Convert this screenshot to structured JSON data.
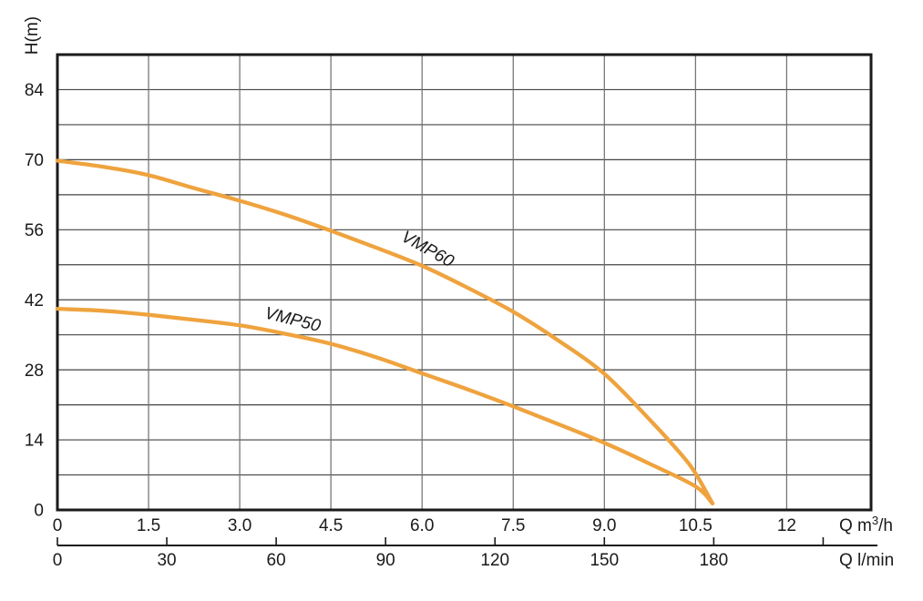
{
  "chart_data": {
    "type": "line",
    "title": "",
    "ylabel": "H(m)",
    "grid": true,
    "legend": "none",
    "y_axis": {
      "range": [
        0,
        91
      ],
      "grid_step": 7,
      "tick_values": [
        0,
        14,
        28,
        42,
        56,
        70,
        84
      ],
      "tick_labels": [
        "0",
        "14",
        "28",
        "42",
        "56",
        "70",
        "84"
      ]
    },
    "x_axis_primary": {
      "unit_display": "Q m³/h",
      "unit_parts": {
        "prefix": "Q m",
        "sup": "3",
        "suffix": "/h"
      },
      "range": [
        0,
        13.4
      ],
      "grid_step": 1.5,
      "tick_values": [
        0,
        1.5,
        3.0,
        4.5,
        6.0,
        7.5,
        9.0,
        10.5,
        12
      ],
      "tick_labels": [
        "0",
        "1.5",
        "3.0",
        "4.5",
        "6.0",
        "7.5",
        "9.0",
        "10.5",
        "12"
      ]
    },
    "x_axis_secondary": {
      "unit_display": "Q l/min",
      "conversion_m3h_per_lmin": 0.06,
      "tick_values": [
        0,
        30,
        60,
        90,
        120,
        150,
        180,
        210
      ],
      "tick_labels": [
        "0",
        "30",
        "60",
        "90",
        "120",
        "150",
        "180",
        ""
      ]
    },
    "series": [
      {
        "name": "VMP60",
        "color": "#EFA33E",
        "label": {
          "text": "VMP60",
          "q": 6.05,
          "h": 51.2,
          "rotation": 29
        },
        "points": [
          [
            0,
            69.8
          ],
          [
            0.75,
            68.6
          ],
          [
            1.5,
            66.9
          ],
          [
            2.25,
            64.3
          ],
          [
            3.0,
            61.8
          ],
          [
            3.75,
            59.0
          ],
          [
            4.5,
            55.8
          ],
          [
            5.25,
            52.4
          ],
          [
            6.0,
            48.8
          ],
          [
            6.75,
            44.4
          ],
          [
            7.5,
            39.6
          ],
          [
            8.25,
            33.8
          ],
          [
            9.0,
            27.2
          ],
          [
            9.75,
            18.0
          ],
          [
            10.25,
            11.3
          ],
          [
            10.5,
            7.3
          ],
          [
            10.78,
            1.3
          ]
        ]
      },
      {
        "name": "VMP50",
        "color": "#EFA33E",
        "label": {
          "text": "VMP50",
          "q": 3.85,
          "h": 37.0,
          "rotation": 14
        },
        "points": [
          [
            0,
            40.2
          ],
          [
            0.75,
            39.8
          ],
          [
            1.5,
            39.0
          ],
          [
            2.25,
            38.0
          ],
          [
            3.0,
            36.9
          ],
          [
            3.75,
            35.2
          ],
          [
            4.5,
            33.2
          ],
          [
            5.25,
            30.5
          ],
          [
            6.0,
            27.3
          ],
          [
            6.75,
            24.1
          ],
          [
            7.5,
            20.7
          ],
          [
            8.25,
            17.1
          ],
          [
            9.0,
            13.4
          ],
          [
            9.75,
            9.2
          ],
          [
            10.5,
            4.7
          ],
          [
            10.78,
            1.3
          ]
        ]
      }
    ],
    "colors": {
      "curve": "#EFA33E",
      "grid_horizontal": "#444444",
      "grid_vertical": "#6e6e6e",
      "frame": "#1a1a1a",
      "text": "#1a1a1a",
      "background": "#ffffff"
    }
  }
}
